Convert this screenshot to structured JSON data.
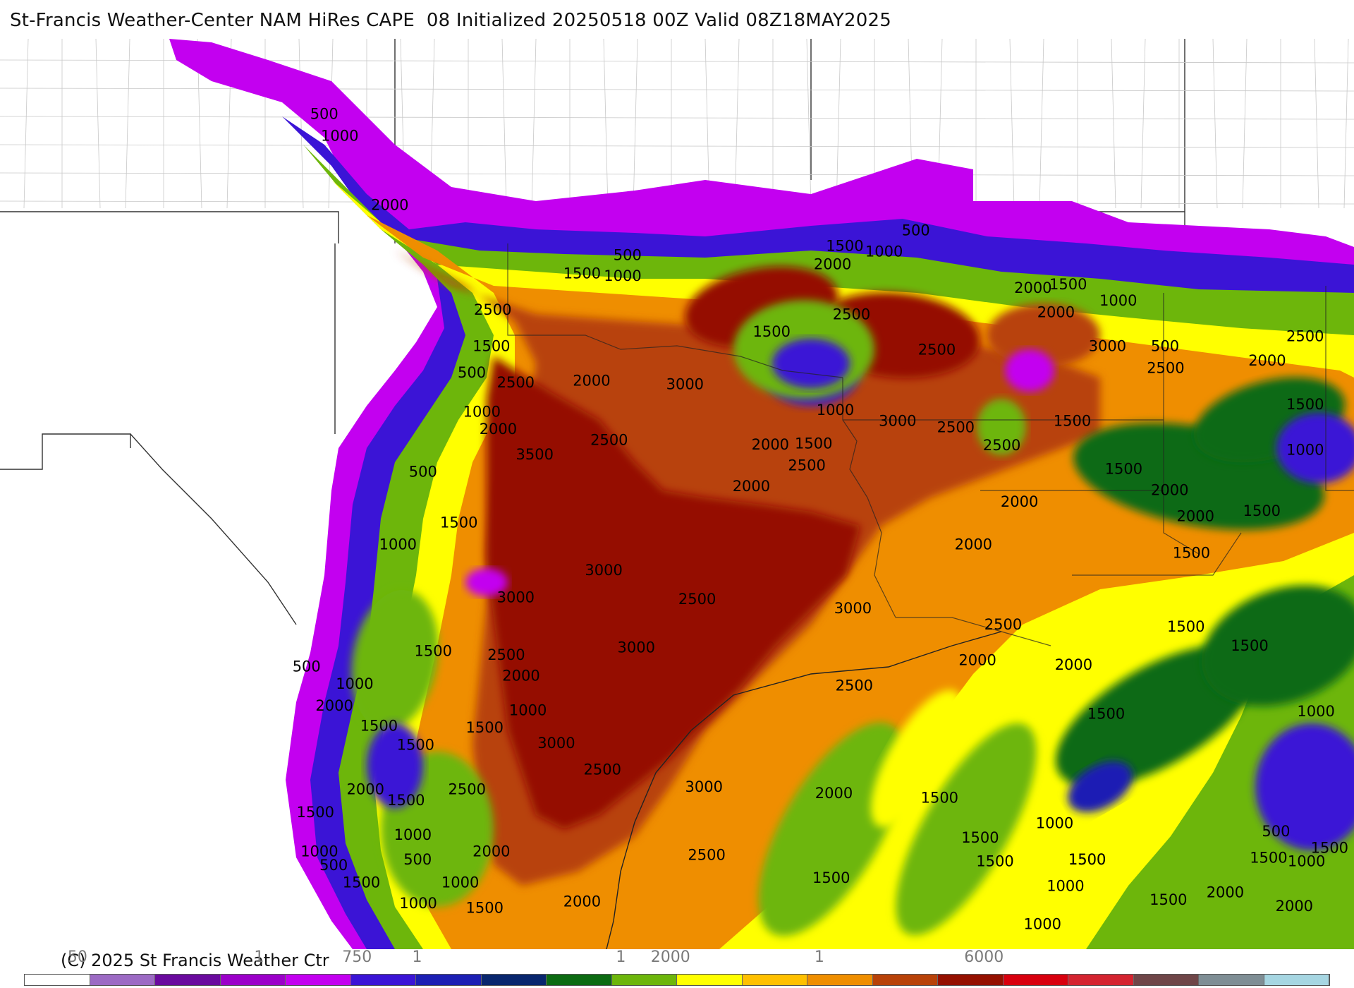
{
  "title": "St-Francis Weather-Center NAM HiRes CAPE  08 Initialized 20250518 00Z Valid 08Z18MAY2025",
  "copyright": "(C) 2025 St Francis Weather Ctr",
  "map": {
    "field": "CAPE",
    "contour_labels": [
      {
        "text": "500",
        "v": 500,
        "gx": 0.229,
        "gy": 0.088
      },
      {
        "text": "1000",
        "v": 1000,
        "gx": 0.237,
        "gy": 0.112
      },
      {
        "text": "2000",
        "v": 2000,
        "gx": 0.274,
        "gy": 0.188
      },
      {
        "text": "500",
        "v": 500,
        "gx": 0.453,
        "gy": 0.243
      },
      {
        "text": "1500",
        "v": 1500,
        "gx": 0.416,
        "gy": 0.263
      },
      {
        "text": "1000",
        "v": 1000,
        "gx": 0.446,
        "gy": 0.266
      },
      {
        "text": "2500",
        "v": 2500,
        "gx": 0.35,
        "gy": 0.303
      },
      {
        "text": "1500",
        "v": 1500,
        "gx": 0.349,
        "gy": 0.343
      },
      {
        "text": "500",
        "v": 500,
        "gx": 0.338,
        "gy": 0.372
      },
      {
        "text": "2500",
        "v": 2500,
        "gx": 0.367,
        "gy": 0.383
      },
      {
        "text": "2000",
        "v": 2000,
        "gx": 0.423,
        "gy": 0.381
      },
      {
        "text": "3000",
        "v": 3000,
        "gx": 0.492,
        "gy": 0.385
      },
      {
        "text": "1000",
        "v": 1000,
        "gx": 0.342,
        "gy": 0.415
      },
      {
        "text": "2000",
        "v": 2000,
        "gx": 0.354,
        "gy": 0.434
      },
      {
        "text": "2500",
        "v": 2500,
        "gx": 0.436,
        "gy": 0.446
      },
      {
        "text": "3500",
        "v": 3500,
        "gx": 0.381,
        "gy": 0.462
      },
      {
        "text": "500",
        "v": 500,
        "gx": 0.302,
        "gy": 0.481
      },
      {
        "text": "1500",
        "v": 1500,
        "gx": 0.325,
        "gy": 0.537
      },
      {
        "text": "1000",
        "v": 1000,
        "gx": 0.28,
        "gy": 0.561
      },
      {
        "text": "3000",
        "v": 3000,
        "gx": 0.432,
        "gy": 0.589
      },
      {
        "text": "3000",
        "v": 3000,
        "gx": 0.367,
        "gy": 0.619
      },
      {
        "text": "2500",
        "v": 2500,
        "gx": 0.501,
        "gy": 0.621
      },
      {
        "text": "3000",
        "v": 3000,
        "gx": 0.616,
        "gy": 0.631
      },
      {
        "text": "1500",
        "v": 1500,
        "gx": 0.306,
        "gy": 0.678
      },
      {
        "text": "3000",
        "v": 3000,
        "gx": 0.456,
        "gy": 0.674
      },
      {
        "text": "2500",
        "v": 2500,
        "gx": 0.36,
        "gy": 0.682
      },
      {
        "text": "500",
        "v": 500,
        "gx": 0.216,
        "gy": 0.695
      },
      {
        "text": "1000",
        "v": 1000,
        "gx": 0.248,
        "gy": 0.714
      },
      {
        "text": "2000",
        "v": 2000,
        "gx": 0.371,
        "gy": 0.705
      },
      {
        "text": "2000",
        "v": 2000,
        "gx": 0.233,
        "gy": 0.738
      },
      {
        "text": "1000",
        "v": 1000,
        "gx": 0.376,
        "gy": 0.743
      },
      {
        "text": "1500",
        "v": 1500,
        "gx": 0.266,
        "gy": 0.76
      },
      {
        "text": "1500",
        "v": 1500,
        "gx": 0.344,
        "gy": 0.762
      },
      {
        "text": "1500",
        "v": 1500,
        "gx": 0.293,
        "gy": 0.781
      },
      {
        "text": "3000",
        "v": 3000,
        "gx": 0.397,
        "gy": 0.779
      },
      {
        "text": "2500",
        "v": 2500,
        "gx": 0.617,
        "gy": 0.716
      },
      {
        "text": "2500",
        "v": 2500,
        "gx": 0.431,
        "gy": 0.808
      },
      {
        "text": "3000",
        "v": 3000,
        "gx": 0.506,
        "gy": 0.827
      },
      {
        "text": "2000",
        "v": 2000,
        "gx": 0.256,
        "gy": 0.83
      },
      {
        "text": "2500",
        "v": 2500,
        "gx": 0.331,
        "gy": 0.83
      },
      {
        "text": "1500",
        "v": 1500,
        "gx": 0.286,
        "gy": 0.842
      },
      {
        "text": "1500",
        "v": 1500,
        "gx": 0.219,
        "gy": 0.855
      },
      {
        "text": "1000",
        "v": 1000,
        "gx": 0.291,
        "gy": 0.88
      },
      {
        "text": "1000",
        "v": 1000,
        "gx": 0.222,
        "gy": 0.898
      },
      {
        "text": "500",
        "v": 500,
        "gx": 0.236,
        "gy": 0.913
      },
      {
        "text": "500",
        "v": 500,
        "gx": 0.298,
        "gy": 0.907
      },
      {
        "text": "2000",
        "v": 2000,
        "gx": 0.349,
        "gy": 0.898
      },
      {
        "text": "2500",
        "v": 2500,
        "gx": 0.508,
        "gy": 0.902
      },
      {
        "text": "1500",
        "v": 1500,
        "gx": 0.253,
        "gy": 0.932
      },
      {
        "text": "1000",
        "v": 1000,
        "gx": 0.326,
        "gy": 0.932
      },
      {
        "text": "1000",
        "v": 1000,
        "gx": 0.295,
        "gy": 0.955
      },
      {
        "text": "1500",
        "v": 1500,
        "gx": 0.344,
        "gy": 0.96
      },
      {
        "text": "2000",
        "v": 2000,
        "gx": 0.416,
        "gy": 0.953
      },
      {
        "text": "2000",
        "v": 2000,
        "gx": 0.602,
        "gy": 0.834
      },
      {
        "text": "1500",
        "v": 1500,
        "gx": 0.68,
        "gy": 0.839
      },
      {
        "text": "1500",
        "v": 1500,
        "gx": 0.6,
        "gy": 0.927
      },
      {
        "text": "1500",
        "v": 1500,
        "gx": 0.71,
        "gy": 0.883
      },
      {
        "text": "1500",
        "v": 1500,
        "gx": 0.721,
        "gy": 0.909
      },
      {
        "text": "1500",
        "v": 1500,
        "gx": 0.789,
        "gy": 0.907
      },
      {
        "text": "1000",
        "v": 1000,
        "gx": 0.765,
        "gy": 0.867
      },
      {
        "text": "1500",
        "v": 1500,
        "gx": 0.789,
        "gy": 0.907
      },
      {
        "text": "1000",
        "v": 1000,
        "gx": 0.773,
        "gy": 0.936
      },
      {
        "text": "1000",
        "v": 1000,
        "gx": 0.756,
        "gy": 0.978
      },
      {
        "text": "1500",
        "v": 1500,
        "gx": 0.849,
        "gy": 0.951
      },
      {
        "text": "2000",
        "v": 2000,
        "gx": 0.891,
        "gy": 0.943
      },
      {
        "text": "2000",
        "v": 2000,
        "gx": 0.942,
        "gy": 0.958
      },
      {
        "text": "500",
        "v": 500,
        "gx": 0.932,
        "gy": 0.876
      },
      {
        "text": "1500",
        "v": 1500,
        "gx": 0.923,
        "gy": 0.905
      },
      {
        "text": "1000",
        "v": 1000,
        "gx": 0.951,
        "gy": 0.909
      },
      {
        "text": "1500",
        "v": 1500,
        "gx": 0.968,
        "gy": 0.894
      },
      {
        "text": "1000",
        "v": 1000,
        "gx": 0.958,
        "gy": 0.744
      },
      {
        "text": "1500",
        "v": 1500,
        "gx": 0.909,
        "gy": 0.672
      },
      {
        "text": "1500",
        "v": 1500,
        "gx": 0.862,
        "gy": 0.651
      },
      {
        "text": "2000",
        "v": 2000,
        "gx": 0.779,
        "gy": 0.693
      },
      {
        "text": "1500",
        "v": 1500,
        "gx": 0.803,
        "gy": 0.747
      },
      {
        "text": "2000",
        "v": 2000,
        "gx": 0.708,
        "gy": 0.688
      },
      {
        "text": "2500",
        "v": 2500,
        "gx": 0.727,
        "gy": 0.649
      },
      {
        "text": "1500",
        "v": 1500,
        "gx": 0.866,
        "gy": 0.57
      },
      {
        "text": "2000",
        "v": 2000,
        "gx": 0.705,
        "gy": 0.561
      },
      {
        "text": "2000",
        "v": 2000,
        "gx": 0.739,
        "gy": 0.514
      },
      {
        "text": "2000",
        "v": 2000,
        "gx": 0.85,
        "gy": 0.501
      },
      {
        "text": "2000",
        "v": 2000,
        "gx": 0.869,
        "gy": 0.53
      },
      {
        "text": "1500",
        "v": 1500,
        "gx": 0.816,
        "gy": 0.478
      },
      {
        "text": "1500",
        "v": 1500,
        "gx": 0.918,
        "gy": 0.524
      },
      {
        "text": "1000",
        "v": 1000,
        "gx": 0.95,
        "gy": 0.457
      },
      {
        "text": "1500",
        "v": 1500,
        "gx": 0.95,
        "gy": 0.407
      },
      {
        "text": "2000",
        "v": 2000,
        "gx": 0.922,
        "gy": 0.359
      },
      {
        "text": "2500",
        "v": 2500,
        "gx": 0.95,
        "gy": 0.332
      },
      {
        "text": "2500",
        "v": 2500,
        "gx": 0.847,
        "gy": 0.367
      },
      {
        "text": "3000",
        "v": 3000,
        "gx": 0.804,
        "gy": 0.343
      },
      {
        "text": "500",
        "v": 500,
        "gx": 0.85,
        "gy": 0.343
      },
      {
        "text": "1000",
        "v": 1000,
        "gx": 0.812,
        "gy": 0.293
      },
      {
        "text": "1500",
        "v": 1500,
        "gx": 0.775,
        "gy": 0.275
      },
      {
        "text": "2000",
        "v": 2000,
        "gx": 0.749,
        "gy": 0.279
      },
      {
        "text": "2000",
        "v": 2000,
        "gx": 0.766,
        "gy": 0.306
      },
      {
        "text": "1500",
        "v": 1500,
        "gx": 0.778,
        "gy": 0.425
      },
      {
        "text": "2500",
        "v": 2500,
        "gx": 0.726,
        "gy": 0.452
      },
      {
        "text": "2500",
        "v": 2500,
        "gx": 0.692,
        "gy": 0.432
      },
      {
        "text": "3000",
        "v": 3000,
        "gx": 0.649,
        "gy": 0.425
      },
      {
        "text": "2500",
        "v": 2500,
        "gx": 0.678,
        "gy": 0.347
      },
      {
        "text": "2500",
        "v": 2500,
        "gx": 0.615,
        "gy": 0.308
      },
      {
        "text": "500",
        "v": 500,
        "gx": 0.666,
        "gy": 0.216
      },
      {
        "text": "1500",
        "v": 1500,
        "gx": 0.61,
        "gy": 0.233
      },
      {
        "text": "1000",
        "v": 1000,
        "gx": 0.639,
        "gy": 0.239
      },
      {
        "text": "2000",
        "v": 2000,
        "gx": 0.601,
        "gy": 0.253
      },
      {
        "text": "1500",
        "v": 1500,
        "gx": 0.556,
        "gy": 0.327
      },
      {
        "text": "1000",
        "v": 1000,
        "gx": 0.603,
        "gy": 0.413
      },
      {
        "text": "1500",
        "v": 1500,
        "gx": 0.587,
        "gy": 0.45
      },
      {
        "text": "2000",
        "v": 2000,
        "gx": 0.555,
        "gy": 0.451
      },
      {
        "text": "2500",
        "v": 2500,
        "gx": 0.582,
        "gy": 0.474
      },
      {
        "text": "2000",
        "v": 2000,
        "gx": 0.541,
        "gy": 0.497
      }
    ]
  },
  "legend": {
    "tick_labels": [
      {
        "text": "50",
        "pos": 0.041
      },
      {
        "text": "1",
        "pos": 0.18
      },
      {
        "text": "750",
        "pos": 0.255
      },
      {
        "text": "1",
        "pos": 0.301
      },
      {
        "text": "1",
        "pos": 0.457
      },
      {
        "text": "2000",
        "pos": 0.495
      },
      {
        "text": "1",
        "pos": 0.609
      },
      {
        "text": "6000",
        "pos": 0.735
      }
    ],
    "colors": [
      "#ffffff",
      "#9c6ac4",
      "#6a0a9e",
      "#9b00c9",
      "#c300f0",
      "#3b14d6",
      "#1c1fb4",
      "#08266e",
      "#0c6b12",
      "#6db60b",
      "#ffff00",
      "#ffc000",
      "#ef8e00",
      "#b84208",
      "#951000",
      "#d8000e",
      "#d42430",
      "#6f4648",
      "#7f8e95",
      "#a6d6e2"
    ]
  }
}
